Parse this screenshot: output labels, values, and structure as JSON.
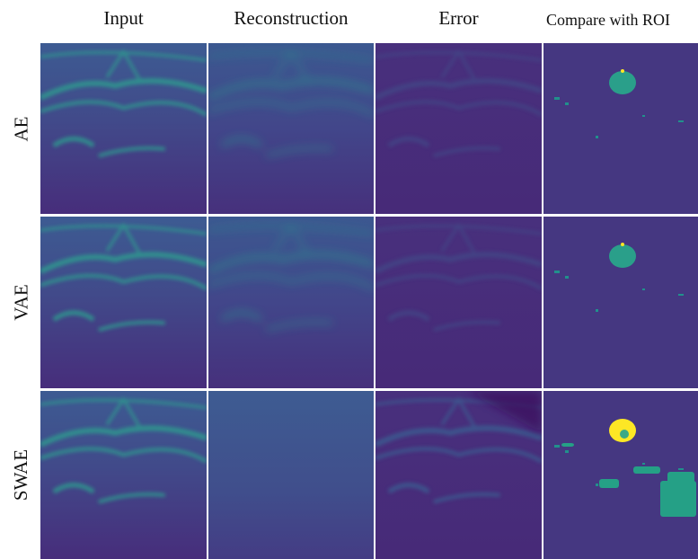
{
  "columns": [
    "Input",
    "Reconstruction",
    "Error",
    "Compare with ROI"
  ],
  "rows": [
    "AE",
    "VAE",
    "SWAE"
  ]
}
